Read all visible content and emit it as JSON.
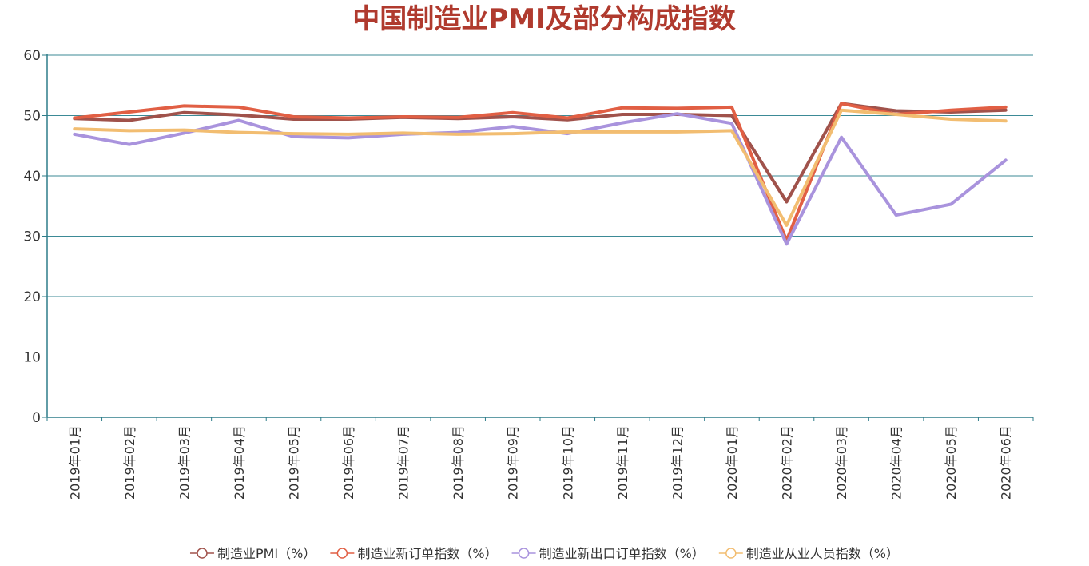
{
  "chart_data": {
    "type": "line",
    "title": "中国制造业PMI及部分构成指数",
    "xlabel": "",
    "ylabel": "",
    "ylim": [
      0,
      60
    ],
    "yticks": [
      0,
      10,
      20,
      30,
      40,
      50,
      60
    ],
    "grid": true,
    "legend_position": "bottom",
    "categories": [
      "2019年01月",
      "2019年02月",
      "2019年03月",
      "2019年04月",
      "2019年05月",
      "2019年06月",
      "2019年07月",
      "2019年08月",
      "2019年09月",
      "2019年10月",
      "2019年11月",
      "2019年12月",
      "2020年01月",
      "2020年02月",
      "2020年03月",
      "2020年04月",
      "2020年05月",
      "2020年06月"
    ],
    "series": [
      {
        "name": "制造业PMI（%）",
        "color": "#a0524b",
        "values": [
          49.5,
          49.2,
          50.5,
          50.1,
          49.4,
          49.4,
          49.7,
          49.5,
          49.8,
          49.3,
          50.2,
          50.2,
          50.0,
          35.7,
          52.0,
          50.8,
          50.6,
          50.9
        ]
      },
      {
        "name": "制造业新订单指数（%）",
        "color": "#e15f44",
        "values": [
          49.6,
          50.6,
          51.6,
          51.4,
          49.8,
          49.6,
          49.8,
          49.7,
          50.5,
          49.6,
          51.3,
          51.2,
          51.4,
          29.3,
          52.0,
          50.2,
          50.9,
          51.4
        ]
      },
      {
        "name": "制造业新出口订单指数（%）",
        "color": "#a993dd",
        "values": [
          46.9,
          45.2,
          47.1,
          49.2,
          46.5,
          46.3,
          46.9,
          47.2,
          48.2,
          47.0,
          48.8,
          50.3,
          48.7,
          28.7,
          46.4,
          33.5,
          35.3,
          42.6
        ]
      },
      {
        "name": "制造业从业人员指数（%）",
        "color": "#f2bd71",
        "values": [
          47.8,
          47.5,
          47.6,
          47.2,
          47.0,
          46.9,
          47.1,
          46.9,
          47.0,
          47.3,
          47.3,
          47.3,
          47.5,
          31.8,
          50.9,
          50.2,
          49.4,
          49.1
        ]
      }
    ]
  },
  "colors": {
    "title": "#b03a2e",
    "axis": "#2e7d8a",
    "grid": "#3b8a96"
  }
}
